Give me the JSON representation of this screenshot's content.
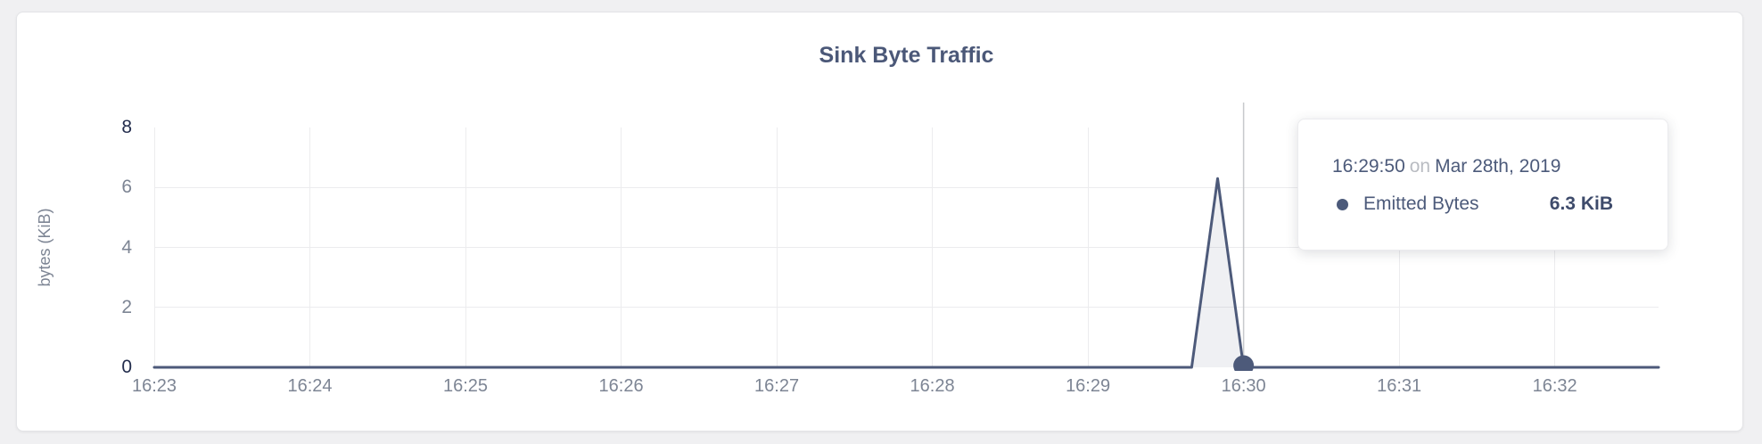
{
  "card": {
    "background": "#ffffff"
  },
  "chart": {
    "title": "Sink Byte Traffic",
    "y_axis": {
      "title": "bytes (KiB)"
    }
  },
  "tooltip": {
    "time": "16:29:50",
    "connector": "on",
    "date": "Mar 28th, 2019",
    "series": "Emitted Bytes",
    "value": "6.3 KiB"
  },
  "colors": {
    "accent_line": "#4d5a7a",
    "area_fill": "rgba(77,90,122,0.09)",
    "gridline": "#ececee",
    "crosshair": "#c7c9cd",
    "tick_gray": "#7d8594",
    "tick_dark": "#232d4d",
    "title_text": "#4b5878",
    "tooltip_muted": "#b9bcc2",
    "page_background": "#f0f0f2"
  },
  "chart_data": {
    "type": "area",
    "title": "Sink Byte Traffic",
    "xlabel": "",
    "ylabel": "bytes (KiB)",
    "ylim": [
      0,
      8
    ],
    "x_range": [
      "16:23:00",
      "16:32:40"
    ],
    "grid": true,
    "y_ticks": [
      {
        "value": 8,
        "label": "8",
        "emphasis": true,
        "grid": false
      },
      {
        "value": 6,
        "label": "6",
        "emphasis": false,
        "grid": true
      },
      {
        "value": 4,
        "label": "4",
        "emphasis": false,
        "grid": true
      },
      {
        "value": 2,
        "label": "2",
        "emphasis": false,
        "grid": true
      },
      {
        "value": 0,
        "label": "0",
        "emphasis": true,
        "grid": false
      }
    ],
    "x_ticks": [
      {
        "time": "16:23:00",
        "label": "16:23"
      },
      {
        "time": "16:24:00",
        "label": "16:24"
      },
      {
        "time": "16:25:00",
        "label": "16:25"
      },
      {
        "time": "16:26:00",
        "label": "16:26"
      },
      {
        "time": "16:27:00",
        "label": "16:27"
      },
      {
        "time": "16:28:00",
        "label": "16:28"
      },
      {
        "time": "16:29:00",
        "label": "16:29"
      },
      {
        "time": "16:30:00",
        "label": "16:30"
      },
      {
        "time": "16:31:00",
        "label": "16:31"
      },
      {
        "time": "16:32:00",
        "label": "16:32"
      }
    ],
    "series": [
      {
        "name": "Emitted Bytes",
        "unit": "KiB",
        "color": "#4d5a7a",
        "fill": "rgba(77,90,122,0.09)",
        "points": [
          [
            "16:23:00",
            0
          ],
          [
            "16:29:40",
            0
          ],
          [
            "16:29:50",
            6.3
          ],
          [
            "16:30:00",
            0
          ],
          [
            "16:32:40",
            0
          ]
        ]
      }
    ],
    "hover": {
      "crosshair_time": "16:30:00",
      "marker": {
        "time": "16:30:00",
        "value": 0
      },
      "tooltip_time": "16:29:50",
      "tooltip_date": "Mar 28th, 2019",
      "tooltip_value_kib": 6.3
    }
  }
}
